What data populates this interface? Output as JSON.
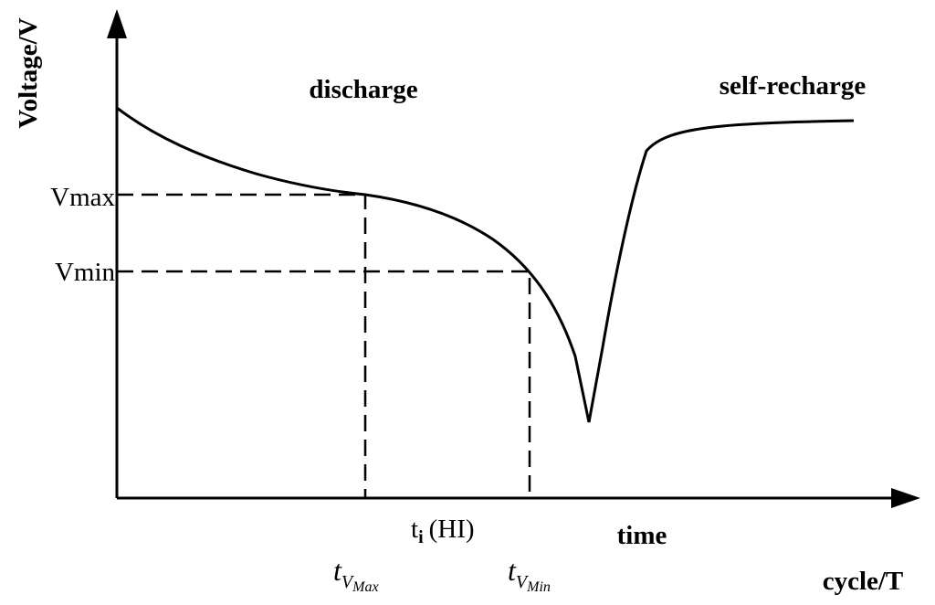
{
  "axes": {
    "y_label": "Voltage/V",
    "x_label": "cycle/T",
    "x_sub_label": "time"
  },
  "regions": {
    "left": "discharge",
    "right": "self-recharge"
  },
  "levels": {
    "max": "Vmax",
    "min": "Vmin"
  },
  "times": {
    "hi": {
      "base": "t",
      "sub": "i",
      "suffix": "(HI)"
    },
    "max": {
      "base": "t",
      "sub": "V",
      "subsub": "Max"
    },
    "min": {
      "base": "t",
      "sub": "V",
      "subsub": "Min"
    }
  }
}
